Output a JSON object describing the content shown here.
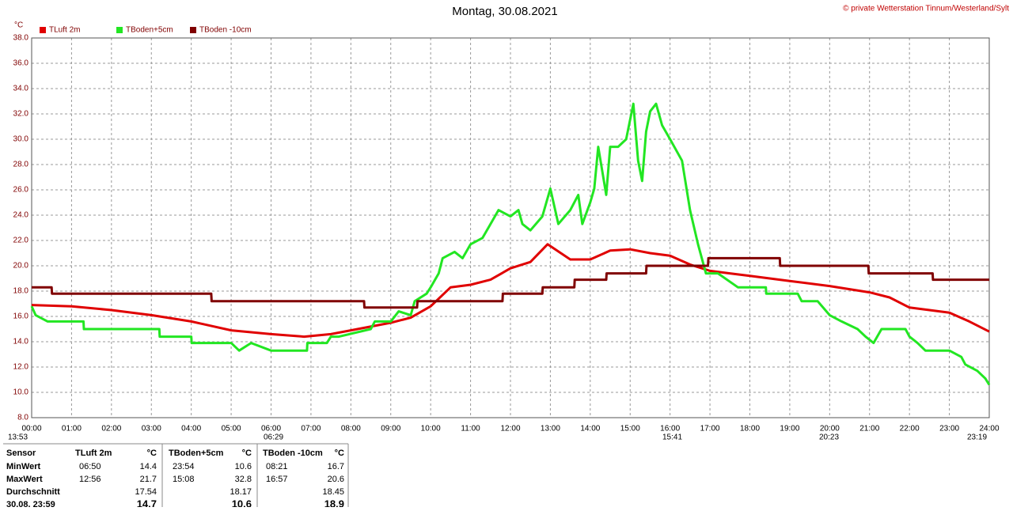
{
  "chart_data": {
    "type": "line",
    "title": "Montag, 30.08.2021",
    "subtitle": "© private Wetterstation Tinnum/Westerland/Sylt",
    "y_label": "°C",
    "grid": true,
    "xlim": [
      0,
      24
    ],
    "ylim": [
      8,
      38
    ],
    "xticks": [
      {
        "value": 0,
        "label": "00:00"
      },
      {
        "value": 1,
        "label": "01:00"
      },
      {
        "value": 2,
        "label": "02:00"
      },
      {
        "value": 3,
        "label": "03:00"
      },
      {
        "value": 4,
        "label": "04:00"
      },
      {
        "value": 5,
        "label": "05:00"
      },
      {
        "value": 6,
        "label": "06:00"
      },
      {
        "value": 7,
        "label": "07:00"
      },
      {
        "value": 8,
        "label": "08:00"
      },
      {
        "value": 9,
        "label": "09:00"
      },
      {
        "value": 10,
        "label": "10:00"
      },
      {
        "value": 11,
        "label": "11:00"
      },
      {
        "value": 12,
        "label": "12:00"
      },
      {
        "value": 13,
        "label": "13:00"
      },
      {
        "value": 14,
        "label": "14:00"
      },
      {
        "value": 15,
        "label": "15:00"
      },
      {
        "value": 16,
        "label": "16:00"
      },
      {
        "value": 17,
        "label": "17:00"
      },
      {
        "value": 18,
        "label": "18:00"
      },
      {
        "value": 19,
        "label": "19:00"
      },
      {
        "value": 20,
        "label": "20:00"
      },
      {
        "value": 21,
        "label": "21:00"
      },
      {
        "value": 22,
        "label": "22:00"
      },
      {
        "value": 23,
        "label": "23:00"
      },
      {
        "value": 24,
        "label": "24:00"
      }
    ],
    "yticks": [
      {
        "value": 8,
        "label": "8.0"
      },
      {
        "value": 10,
        "label": "10.0"
      },
      {
        "value": 12,
        "label": "12.0"
      },
      {
        "value": 14,
        "label": "14.0"
      },
      {
        "value": 16,
        "label": "16.0"
      },
      {
        "value": 18,
        "label": "18.0"
      },
      {
        "value": 20,
        "label": "20.0"
      },
      {
        "value": 22,
        "label": "22.0"
      },
      {
        "value": 24,
        "label": "24.0"
      },
      {
        "value": 26,
        "label": "26.0"
      },
      {
        "value": 28,
        "label": "28.0"
      },
      {
        "value": 30,
        "label": "30.0"
      },
      {
        "value": 32,
        "label": "32.0"
      },
      {
        "value": 34,
        "label": "34.0"
      },
      {
        "value": 36,
        "label": "36.0"
      },
      {
        "value": 38,
        "label": "38.0"
      }
    ],
    "series": [
      {
        "name": "TLuft 2m",
        "color": "#e00000",
        "x": [
          0,
          1,
          2,
          3,
          4,
          5,
          6,
          6.83,
          7.5,
          8,
          9,
          9.5,
          10,
          10.5,
          11,
          11.5,
          12,
          12.5,
          12.93,
          13.5,
          14,
          14.5,
          15,
          15.5,
          16,
          16.5,
          17,
          17.5,
          18,
          19,
          20,
          21,
          21.5,
          22,
          23,
          23.5,
          24
        ],
        "values": [
          16.9,
          16.8,
          16.5,
          16.1,
          15.6,
          14.9,
          14.6,
          14.4,
          14.6,
          14.9,
          15.5,
          15.9,
          16.8,
          18.3,
          18.5,
          18.9,
          19.8,
          20.3,
          21.7,
          20.5,
          20.5,
          21.2,
          21.3,
          21.0,
          20.8,
          20.1,
          19.6,
          19.4,
          19.2,
          18.8,
          18.4,
          17.9,
          17.5,
          16.7,
          16.3,
          15.6,
          14.8
        ]
      },
      {
        "name": "TBoden+5cm",
        "color": "#22e622",
        "x": [
          0,
          0.1,
          0.4,
          1.3,
          1.31,
          3.2,
          3.21,
          4,
          4.01,
          5,
          5.2,
          5.5,
          6,
          6.9,
          6.91,
          7.4,
          7.5,
          7.7,
          8.5,
          8.6,
          9,
          9.2,
          9.5,
          9.6,
          9.9,
          10,
          10.2,
          10.3,
          10.6,
          10.8,
          11,
          11.3,
          11.5,
          11.7,
          12,
          12.2,
          12.3,
          12.5,
          12.8,
          13,
          13.2,
          13.5,
          13.7,
          13.8,
          14,
          14.1,
          14.2,
          14.4,
          14.5,
          14.7,
          14.9,
          15.08,
          15.2,
          15.3,
          15.4,
          15.5,
          15.65,
          15.8,
          16,
          16.3,
          16.5,
          16.7,
          16.9,
          17.2,
          17.7,
          18.4,
          18.41,
          19.2,
          19.3,
          19.7,
          20,
          20.3,
          20.7,
          20.9,
          21.1,
          21.3,
          21.9,
          22,
          22.2,
          22.4,
          23,
          23.3,
          23.4,
          23.7,
          23.9,
          24
        ],
        "values": [
          16.8,
          16.1,
          15.6,
          15.6,
          15.0,
          15.0,
          14.4,
          14.4,
          13.9,
          13.9,
          13.3,
          13.9,
          13.3,
          13.3,
          13.9,
          13.9,
          14.4,
          14.4,
          15.0,
          15.6,
          15.6,
          16.4,
          16.1,
          17.2,
          17.8,
          18.3,
          19.4,
          20.6,
          21.1,
          20.6,
          21.7,
          22.2,
          23.3,
          24.4,
          23.9,
          24.4,
          23.3,
          22.8,
          23.9,
          26.1,
          23.3,
          24.4,
          25.6,
          23.3,
          25.0,
          26.1,
          29.4,
          25.6,
          29.4,
          29.4,
          30.0,
          32.8,
          28.3,
          26.7,
          30.6,
          32.2,
          32.8,
          31.1,
          30.0,
          28.3,
          24.4,
          21.7,
          19.4,
          19.4,
          18.3,
          18.3,
          17.8,
          17.8,
          17.2,
          17.2,
          16.1,
          15.6,
          15.0,
          14.4,
          13.9,
          15.0,
          15.0,
          14.4,
          13.9,
          13.3,
          13.3,
          12.8,
          12.2,
          11.7,
          11.1,
          10.6
        ]
      },
      {
        "name": "TBoden -10cm",
        "color": "#800000",
        "x": [
          0,
          0.5,
          0.51,
          4.5,
          4.51,
          8.33,
          8.34,
          9.66,
          9.67,
          11.8,
          11.81,
          12.8,
          12.81,
          13.6,
          13.61,
          14.4,
          14.41,
          15.4,
          15.41,
          16.95,
          16.96,
          18.75,
          18.76,
          20.97,
          20.98,
          22.58,
          22.59,
          24
        ],
        "values": [
          18.3,
          18.3,
          17.8,
          17.8,
          17.2,
          17.2,
          16.7,
          16.7,
          17.2,
          17.2,
          17.8,
          17.8,
          18.3,
          18.3,
          18.9,
          18.9,
          19.4,
          19.4,
          20.0,
          20.0,
          20.6,
          20.6,
          20.0,
          20.0,
          19.4,
          19.4,
          18.9,
          18.9
        ]
      }
    ],
    "annotations": [
      "13:53",
      "06:29",
      "15:41",
      "20:23",
      "23:19"
    ]
  },
  "stats_table": {
    "header": [
      "Sensor",
      "TLuft 2m",
      "°C",
      "TBoden+5cm",
      "°C",
      "TBoden -10cm",
      "°C"
    ],
    "rows": [
      [
        "MinWert",
        "06:50",
        14.4,
        "23:54",
        10.6,
        "08:21",
        16.7
      ],
      [
        "MaxWert",
        "12:56",
        21.7,
        "15:08",
        32.8,
        "16:57",
        20.6
      ],
      [
        "Durchschnitt",
        null,
        17.54,
        null,
        18.17,
        null,
        18.45
      ],
      [
        "30.08. 23:59",
        null,
        14.7,
        null,
        10.6,
        null,
        18.9
      ]
    ]
  }
}
